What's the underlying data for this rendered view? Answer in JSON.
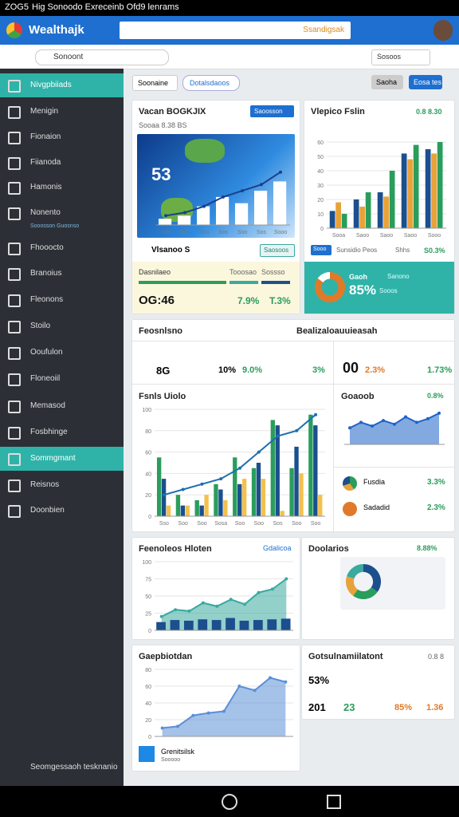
{
  "status_bar": {
    "time": "ZOG5",
    "text": "Hig Sonoodo Exreceinb Ofd9 lenrams"
  },
  "app_bar": {
    "title": "Wealthajk",
    "search": "Ssandigsak"
  },
  "toolbar": {
    "filter": "Sonoont",
    "search": "Sosoos"
  },
  "sidebar": {
    "items": [
      "Nivgpbiiads",
      "Menigin",
      "Fionaion",
      "Fiianoda",
      "Hamonis",
      "Nonento",
      "Fhooocto",
      "Branoius",
      "Fleonons",
      "Stoilo",
      "Ooufulon",
      "Floneoiil",
      "Memasod",
      "Fosbhinge",
      "Sommgmant",
      "Reisnos",
      "Doonbien"
    ],
    "sub": "Sooosson Guosnso",
    "footer": "Seomgessaoh tesknanio"
  },
  "tabs": {
    "left": "Soonaine",
    "dropdown": "Dotalsdaoos",
    "button1": "Saoha",
    "button2": "Eosa tes"
  },
  "card_map": {
    "title": "Vacan BOGKJIX",
    "button": "Saoosson",
    "stat": "53",
    "sub": "Sooaa 8.38 BS",
    "badge": "Vlsanoo S",
    "badge_button": "Saosoos",
    "bar_label": "Dasnilaeo",
    "bar_values": [
      "Tooosao",
      "Sossso"
    ],
    "time": "OG:46",
    "pct1": "7.9%",
    "pct2": "T.3%",
    "chart": {
      "type": "bar",
      "ylim": [
        0,
        20
      ],
      "categories": [
        "Sos",
        "Soo",
        "Soo",
        "Sos",
        "Soo",
        "Sos",
        "Sooo"
      ],
      "series": [
        {
          "color": "#ffffff",
          "values": [
            2,
            3,
            6,
            9,
            7,
            11,
            14
          ]
        },
        {
          "kind": "line",
          "color": "#1b3f8b",
          "values": [
            3,
            4,
            6,
            9,
            11,
            13,
            17
          ]
        }
      ]
    }
  },
  "card_bars": {
    "title": "Vlepico Fslin",
    "value": "0.8 8.30",
    "legend": [
      "Sooo",
      "Sunsidio Peos",
      "Shhs",
      "S0.3%"
    ],
    "chart": {
      "type": "bar",
      "ylim": [
        0,
        70
      ],
      "yticks": [
        0,
        10,
        20,
        30,
        40,
        50,
        60
      ],
      "categories": [
        "Sooa",
        "Saoo",
        "Saoo",
        "Saoo",
        "Sooo"
      ],
      "series": [
        {
          "color": "#1b4f8e",
          "values": [
            12,
            20,
            25,
            52,
            55
          ]
        },
        {
          "color": "#e8a23a",
          "values": [
            18,
            15,
            22,
            48,
            52
          ]
        },
        {
          "color": "#2a9d5c",
          "values": [
            10,
            25,
            40,
            58,
            60
          ]
        }
      ]
    },
    "panel": {
      "title": "Gaoh",
      "sub": "Sanono",
      "pct": "85%",
      "note": "Sooos",
      "chart": {
        "type": "donut",
        "values": [
          85,
          15
        ],
        "colors": [
          "#e07a2a",
          "#ffffff"
        ]
      }
    }
  },
  "section": {
    "title": "Feosnlsno",
    "subtitle": "Bealizaloauuieasah",
    "stats": [
      "8G",
      "10%",
      "9.0%",
      "3%",
      "00",
      "2.3%",
      "1.73%"
    ],
    "big": {
      "title": "Fsnls Uiolo",
      "chart": {
        "type": "bar",
        "ylim": [
          0,
          100
        ],
        "yticks": [
          0,
          20,
          40,
          60,
          80,
          100
        ],
        "categories": [
          "Sso",
          "Soo",
          "Soo",
          "Sosa",
          "Soo",
          "Soo",
          "Sos",
          "Soo",
          "Soo"
        ],
        "series": [
          {
            "color": "#2a9d5c",
            "values": [
              55,
              20,
              15,
              30,
              55,
              45,
              90,
              45,
              95
            ]
          },
          {
            "color": "#1b4f8e",
            "values": [
              35,
              10,
              10,
              25,
              30,
              50,
              85,
              65,
              85
            ]
          },
          {
            "color": "#f2c14e",
            "values": [
              10,
              10,
              20,
              15,
              35,
              35,
              5,
              40,
              20
            ]
          },
          {
            "kind": "line",
            "color": "#1b6fb0",
            "values": [
              20,
              25,
              30,
              35,
              45,
              60,
              75,
              80,
              95
            ]
          }
        ]
      }
    },
    "area": {
      "title": "Goaoob",
      "pct": "0.8%",
      "chart": {
        "type": "area",
        "ylim": [
          0,
          100
        ],
        "series": [
          {
            "color": "#1e63c8",
            "values": [
              45,
              60,
              50,
              65,
              55,
              75,
              60,
              70,
              85
            ]
          }
        ]
      }
    },
    "rows": [
      {
        "name": "Fusdia",
        "pct": "3.3%"
      },
      {
        "name": "Sadadid",
        "pct": "2.3%"
      }
    ]
  },
  "card_history": {
    "title": "Feenoleos Hloten",
    "link": "Gdalicoa",
    "chart": {
      "type": "area",
      "ylim": [
        0,
        100
      ],
      "yticks": [
        0,
        25,
        50,
        75,
        100
      ],
      "series": [
        {
          "color": "#3aa99f",
          "values": [
            20,
            30,
            28,
            40,
            35,
            45,
            38,
            55,
            60,
            75
          ]
        },
        {
          "kind": "bar",
          "color": "#1b4f8e",
          "values": [
            12,
            15,
            14,
            16,
            15,
            18,
            14,
            15,
            16,
            17
          ]
        }
      ]
    }
  },
  "card_donut": {
    "title": "Doolarios",
    "pct": "8.88%",
    "chart": {
      "type": "donut",
      "values": [
        35,
        25,
        20,
        20
      ],
      "colors": [
        "#1b4f8e",
        "#2a9d5c",
        "#e8a23a",
        "#3aa99f"
      ]
    }
  },
  "card_line": {
    "title": "Gaepbiotdan",
    "footer": "Grenitsilsk",
    "footer_sub": "Sooooo",
    "chart": {
      "type": "area",
      "ylim": [
        0,
        80
      ],
      "yticks": [
        0,
        20,
        40,
        60,
        80
      ],
      "series": [
        {
          "color": "#5b8fd6",
          "values": [
            10,
            12,
            25,
            28,
            30,
            60,
            55,
            70,
            65
          ]
        }
      ]
    }
  },
  "card_summary": {
    "title": "Gotsulnamiilatont",
    "value": "0.8 8",
    "stats": [
      "53%",
      "201",
      "23",
      "85%",
      "1.36"
    ]
  }
}
